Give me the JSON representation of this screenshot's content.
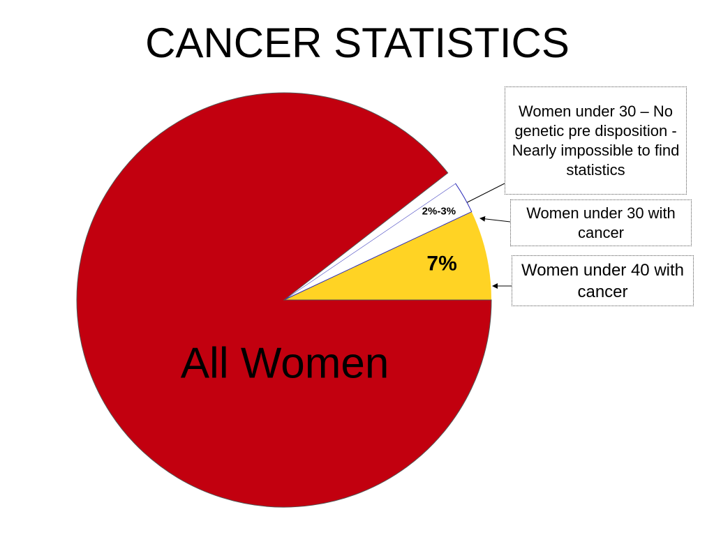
{
  "chart_data": {
    "type": "pie",
    "title": "CANCER STATISTICS",
    "categories": [
      "All Women",
      "Women under 40 with cancer",
      "Women under 30 with cancer",
      "Women under 30 – No genetic pre disposition - Nearly impossible to find statistics"
    ],
    "values": [
      89.5,
      7,
      2.5,
      1
    ],
    "value_labels": [
      null,
      "7%",
      "2%-3%",
      null
    ],
    "colors": [
      "#c2000f",
      "#ffd324",
      "#ffffff",
      "#ffffff"
    ]
  }
}
